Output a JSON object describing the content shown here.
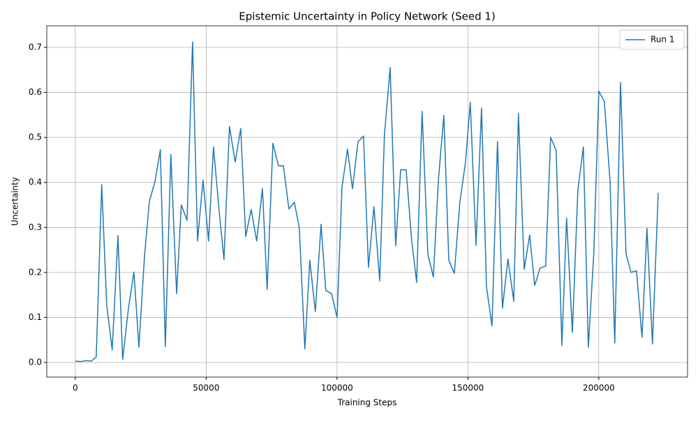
{
  "chart_data": {
    "type": "line",
    "title": "Epistemic Uncertainty in Policy Network (Seed 1)",
    "xlabel": "Training Steps",
    "ylabel": "Uncertainty",
    "x": [
      0,
      2100,
      4000,
      6100,
      8000,
      10100,
      12000,
      14100,
      16300,
      18100,
      20300,
      22400,
      24300,
      26400,
      28300,
      30400,
      32500,
      34400,
      36500,
      38700,
      40500,
      42700,
      44800,
      46700,
      48800,
      50900,
      52800,
      54900,
      56800,
      58900,
      61100,
      63200,
      65100,
      67200,
      69300,
      71500,
      73300,
      75500,
      77600,
      79500,
      81600,
      83700,
      85600,
      87700,
      89600,
      91700,
      93900,
      95700,
      97900,
      100000,
      101900,
      104000,
      105900,
      108000,
      110100,
      112000,
      114100,
      116300,
      118100,
      120300,
      122400,
      124300,
      126400,
      128500,
      130400,
      132500,
      134700,
      136800,
      138700,
      140800,
      142700,
      144800,
      146900,
      149100,
      150900,
      153100,
      155200,
      157100,
      159200,
      161300,
      163200,
      165300,
      167500,
      169300,
      171500,
      173600,
      175500,
      177600,
      179700,
      181600,
      183700,
      185900,
      187700,
      189900,
      192000,
      194100,
      196000,
      198100,
      200000,
      202100,
      204300,
      206100,
      208300,
      210400,
      212300,
      214400,
      216500,
      218400,
      220500,
      222700
    ],
    "series": [
      {
        "name": "Run 1",
        "color": "#1f77b4",
        "values": [
          0.003,
          0.002,
          0.004,
          0.003,
          0.012,
          0.395,
          0.127,
          0.028,
          0.282,
          0.007,
          0.12,
          0.201,
          0.034,
          0.233,
          0.358,
          0.401,
          0.473,
          0.035,
          0.462,
          0.153,
          0.35,
          0.316,
          0.712,
          0.27,
          0.405,
          0.27,
          0.479,
          0.34,
          0.229,
          0.524,
          0.445,
          0.52,
          0.28,
          0.34,
          0.27,
          0.386,
          0.162,
          0.487,
          0.437,
          0.437,
          0.341,
          0.356,
          0.298,
          0.03,
          0.227,
          0.113,
          0.307,
          0.16,
          0.153,
          0.1,
          0.39,
          0.474,
          0.386,
          0.49,
          0.503,
          0.211,
          0.346,
          0.181,
          0.505,
          0.655,
          0.259,
          0.428,
          0.428,
          0.272,
          0.178,
          0.558,
          0.24,
          0.19,
          0.404,
          0.549,
          0.227,
          0.198,
          0.355,
          0.446,
          0.578,
          0.26,
          0.565,
          0.168,
          0.081,
          0.491,
          0.121,
          0.23,
          0.136,
          0.553,
          0.207,
          0.283,
          0.171,
          0.21,
          0.214,
          0.5,
          0.471,
          0.038,
          0.321,
          0.067,
          0.383,
          0.479,
          0.034,
          0.243,
          0.603,
          0.58,
          0.402,
          0.043,
          0.622,
          0.242,
          0.2,
          0.204,
          0.056,
          0.298,
          0.041,
          0.377
        ]
      }
    ],
    "xlim": [
      -10900,
      233900
    ],
    "ylim": [
      -0.0325,
      0.748
    ],
    "xticks": [
      0,
      50000,
      100000,
      150000,
      200000
    ],
    "yticks": [
      {
        "value": 0,
        "label": "0.0"
      },
      0.1,
      0.2,
      0.3,
      0.4,
      0.5,
      0.6,
      0.7
    ],
    "grid": true,
    "legend": "upper right"
  }
}
